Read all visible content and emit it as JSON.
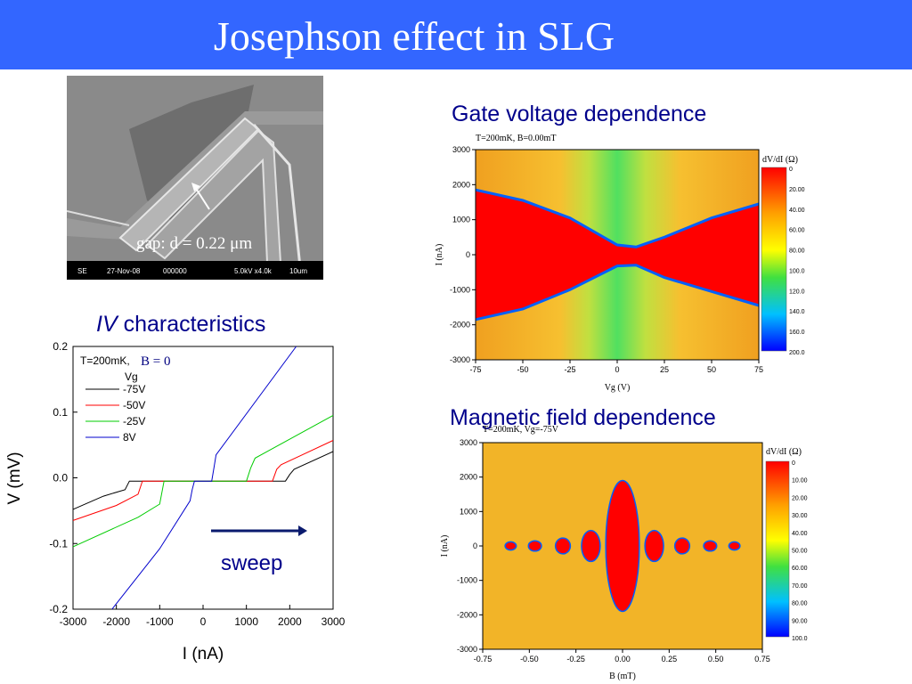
{
  "slide": {
    "title": "Josephson effect in SLG",
    "title_bar_color": "#3366ff"
  },
  "sem_image": {
    "caption": "gap: d = 0.22 μm",
    "info": [
      "SE",
      "27-Nov-08",
      "000000",
      "5.0kV x4.0k",
      "10um"
    ]
  },
  "iv_panel": {
    "title_italic": "IV",
    "title_rest": " characteristics",
    "condition": "T=200mK,",
    "field": "B = 0",
    "legend_title": "Vg",
    "sweep_label": "sweep",
    "arrow_color": "#0a1a6e"
  },
  "gate_panel": {
    "title": "Gate voltage dependence",
    "plot_header": "T=200mK, B=0.00mT"
  },
  "magnetic_panel": {
    "title": "Magnetic field dependence",
    "plot_header": "T=200mK, Vg=-75V"
  },
  "chart_data": [
    {
      "type": "line",
      "xlabel": "I (nA)",
      "ylabel": "V (mV)",
      "xlim": [
        -3000,
        3000
      ],
      "ylim": [
        -0.2,
        0.2
      ],
      "xticks": [
        "-3000",
        "-2000",
        "-1000",
        "0",
        "1000",
        "2000",
        "3000"
      ],
      "yticks": [
        "0.2",
        "0.1",
        "0.0",
        "-0.1",
        "-0.2"
      ],
      "legend_position": "top-left",
      "series": [
        {
          "name": "-75V",
          "color": "#000000",
          "x": [
            -3000,
            -2300,
            -1800,
            -1700,
            -1600,
            1900,
            2000,
            2100,
            3000
          ],
          "y": [
            -0.048,
            -0.028,
            -0.018,
            -0.005,
            -0.005,
            -0.005,
            0.005,
            0.013,
            0.04
          ]
        },
        {
          "name": "-50V",
          "color": "#ff0000",
          "x": [
            -3000,
            -2000,
            -1500,
            -1400,
            -1300,
            1600,
            1700,
            1800,
            3000
          ],
          "y": [
            -0.065,
            -0.042,
            -0.025,
            -0.005,
            -0.005,
            -0.005,
            0.013,
            0.02,
            0.057
          ]
        },
        {
          "name": "-25V",
          "color": "#00cc00",
          "x": [
            -3000,
            -1500,
            -1000,
            -900,
            -800,
            1000,
            1100,
            1200,
            3000
          ],
          "y": [
            -0.105,
            -0.06,
            -0.04,
            -0.005,
            -0.005,
            -0.005,
            0.015,
            0.03,
            0.095
          ]
        },
        {
          "name": "8V",
          "color": "#0000cc",
          "x": [
            -2100,
            -1000,
            -300,
            -250,
            -200,
            200,
            250,
            300,
            2150
          ],
          "y": [
            -0.2,
            -0.108,
            -0.035,
            -0.018,
            -0.005,
            -0.005,
            0.015,
            0.035,
            0.2
          ]
        }
      ]
    },
    {
      "type": "heatmap",
      "xlabel": "Vg (V)",
      "ylabel": "I (nA)",
      "xlim": [
        -75,
        75
      ],
      "ylim": [
        -3000,
        3000
      ],
      "xticks": [
        "-75",
        "-50",
        "-25",
        "0",
        "25",
        "50",
        "75"
      ],
      "yticks": [
        "3000",
        "2000",
        "1000",
        "0",
        "-1000",
        "-2000",
        "-3000"
      ],
      "colorbar_label": "dV/dI (Ω)",
      "colorbar_ticks": [
        "0",
        "20.00",
        "40.00",
        "60.00",
        "80.00",
        "100.0",
        "120.0",
        "140.0",
        "160.0",
        "200.0"
      ],
      "colorbar_range": [
        0,
        200
      ],
      "switching_current_boundary": {
        "vg": [
          -75,
          -50,
          -25,
          0,
          10,
          25,
          50,
          75
        ],
        "i_upper": [
          1850,
          1550,
          1050,
          280,
          220,
          500,
          1050,
          1450
        ],
        "i_lower": [
          -1850,
          -1550,
          -1000,
          -320,
          -300,
          -650,
          -1050,
          -1450
        ]
      },
      "colors": {
        "superconducting": "#ff0000",
        "normal": "#f0b020",
        "dirac_point": "#40e040",
        "boundary": "#0060ff"
      }
    },
    {
      "type": "heatmap",
      "xlabel": "B (mT)",
      "ylabel": "I (nA)",
      "xlim": [
        -0.75,
        0.75
      ],
      "ylim": [
        -3000,
        3000
      ],
      "xticks": [
        "-0.75",
        "-0.50",
        "-0.25",
        "0.00",
        "0.25",
        "0.50",
        "0.75"
      ],
      "yticks": [
        "3000",
        "2000",
        "1000",
        "0",
        "-1000",
        "-2000",
        "-3000"
      ],
      "colorbar_label": "dV/dI (Ω)",
      "colorbar_ticks": [
        "0",
        "10.00",
        "20.00",
        "30.00",
        "40.00",
        "50.00",
        "60.00",
        "70.00",
        "80.00",
        "90.00",
        "100.0"
      ],
      "colorbar_range": [
        0,
        100
      ],
      "fraunhofer_lobes": [
        {
          "b_center": 0.0,
          "half_width": 0.09,
          "ic": 1900
        },
        {
          "b_center": -0.17,
          "half_width": 0.05,
          "ic": 450
        },
        {
          "b_center": 0.17,
          "half_width": 0.05,
          "ic": 450
        },
        {
          "b_center": -0.32,
          "half_width": 0.04,
          "ic": 230
        },
        {
          "b_center": 0.32,
          "half_width": 0.04,
          "ic": 230
        },
        {
          "b_center": -0.47,
          "half_width": 0.035,
          "ic": 150
        },
        {
          "b_center": 0.47,
          "half_width": 0.035,
          "ic": 150
        },
        {
          "b_center": -0.6,
          "half_width": 0.03,
          "ic": 120
        },
        {
          "b_center": 0.6,
          "half_width": 0.03,
          "ic": 120
        }
      ],
      "colors": {
        "superconducting": "#ff0000",
        "normal": "#f0b020",
        "boundary": "#0060ff"
      }
    }
  ]
}
